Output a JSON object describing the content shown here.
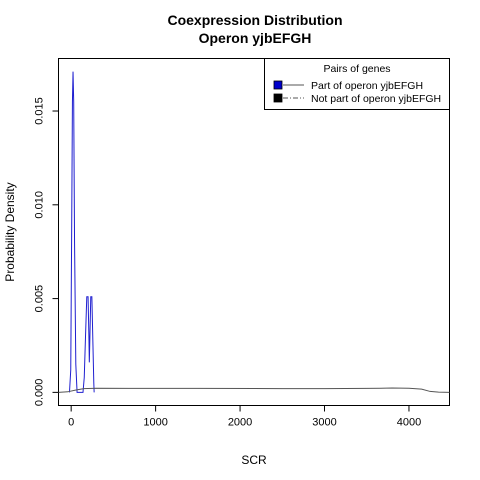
{
  "chart_data": {
    "type": "line",
    "title": [
      "Coexpression Distribution",
      "Operon yjbEFGH"
    ],
    "xlabel": "SCR",
    "ylabel": "Probability Density",
    "xlim": [
      -150,
      4480
    ],
    "ylim": [
      -0.0007,
      0.0178
    ],
    "xticks": [
      0,
      1000,
      2000,
      3000,
      4000
    ],
    "xtick_labels": [
      "0",
      "1000",
      "2000",
      "3000",
      "4000"
    ],
    "yticks": [
      0.0,
      0.005,
      0.01,
      0.015
    ],
    "ytick_labels": [
      "0.000",
      "0.005",
      "0.010",
      "0.015"
    ],
    "grid": false,
    "legend": {
      "title": "Pairs of genes",
      "position": "top-right",
      "entries": [
        {
          "label": "Part of operon yjbEFGH",
          "swatch": "#0000cc",
          "line": "solid",
          "line_color": "#555555"
        },
        {
          "label": "Not part of operon yjbEFGH",
          "swatch": "#000000",
          "line": "dashdot",
          "line_color": "#555555"
        }
      ]
    },
    "series": [
      {
        "color": "#1f1fd0",
        "points": [
          [
            -20,
            0.0
          ],
          [
            -5,
            0.0012
          ],
          [
            5,
            0.008
          ],
          [
            15,
            0.0155
          ],
          [
            22,
            0.0171
          ],
          [
            30,
            0.0155
          ],
          [
            40,
            0.008
          ],
          [
            55,
            0.0015
          ],
          [
            70,
            0.0
          ],
          [
            140,
            0.0
          ],
          [
            155,
            0.0008
          ],
          [
            170,
            0.003
          ],
          [
            185,
            0.0051
          ],
          [
            200,
            0.0051
          ],
          [
            210,
            0.003
          ],
          [
            215,
            0.0016
          ],
          [
            222,
            0.003
          ],
          [
            232,
            0.0051
          ],
          [
            245,
            0.0051
          ],
          [
            258,
            0.0025
          ],
          [
            268,
            0.0005
          ],
          [
            272,
            0.0
          ]
        ]
      },
      {
        "color": "#555555",
        "points": [
          [
            -150,
            0.0
          ],
          [
            -40,
            3e-05
          ],
          [
            50,
            0.00012
          ],
          [
            150,
            0.0002
          ],
          [
            300,
            0.00022
          ],
          [
            800,
            0.00021
          ],
          [
            1500,
            0.00021
          ],
          [
            2500,
            0.0002
          ],
          [
            3000,
            0.0002
          ],
          [
            3500,
            0.00021
          ],
          [
            3800,
            0.00023
          ],
          [
            4000,
            0.00022
          ],
          [
            4150,
            0.00017
          ],
          [
            4250,
            5e-05
          ],
          [
            4350,
            1e-05
          ],
          [
            4480,
            0.0
          ]
        ]
      }
    ]
  }
}
